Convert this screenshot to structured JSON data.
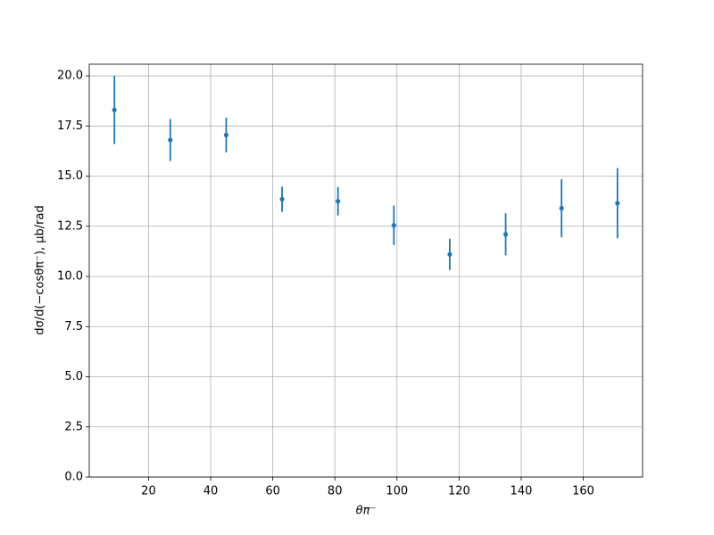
{
  "chart_data": {
    "type": "scatter",
    "x_label": "θπ⁻",
    "y_label": "dσ/d(−cosθπ⁻), μb/rad",
    "series": [
      {
        "color": "#1f77b4",
        "x": [
          9,
          27,
          45,
          63,
          81,
          99,
          117,
          135,
          153,
          171
        ],
        "values": [
          18.3,
          16.8,
          17.05,
          13.85,
          13.75,
          12.55,
          11.1,
          12.1,
          13.4,
          13.65
        ],
        "errors": [
          1.7,
          1.05,
          0.87,
          0.63,
          0.71,
          0.98,
          0.78,
          1.05,
          1.45,
          1.75
        ]
      }
    ],
    "xlim": [
      0.9,
      179.1
    ],
    "ylim": [
      0,
      20.58
    ],
    "xticks": [
      20,
      40,
      60,
      80,
      100,
      120,
      140,
      160
    ],
    "yticks": [
      {
        "value": 0,
        "label": "0.0"
      },
      {
        "value": 2.5,
        "label": "2.5"
      },
      {
        "value": 5,
        "label": "5.0"
      },
      {
        "value": 7.5,
        "label": "7.5"
      },
      {
        "value": 10,
        "label": "10.0"
      },
      {
        "value": 12.5,
        "label": "12.5"
      },
      {
        "value": 15,
        "label": "15.0"
      },
      {
        "value": 17.5,
        "label": "17.5"
      },
      {
        "value": 20,
        "label": "20.0"
      }
    ],
    "grid": true
  }
}
